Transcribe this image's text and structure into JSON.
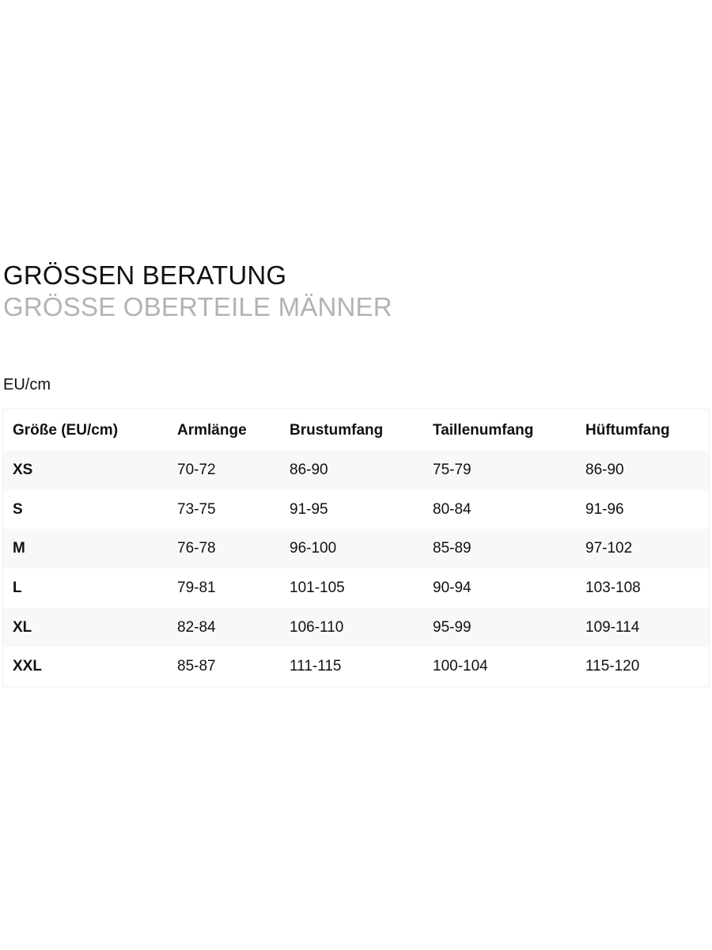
{
  "header": {
    "title": "GRÖSSEN BERATUNG",
    "subtitle": "GRÖSSE OBERTEILE MÄNNER",
    "unit": "EU/cm"
  },
  "table": {
    "columns": [
      "Größe (EU/cm)",
      "Armlänge",
      "Brustumfang",
      "Taillenumfang",
      "Hüftumfang"
    ],
    "rows": [
      [
        "XS",
        "70-72",
        "86-90",
        "75-79",
        "86-90"
      ],
      [
        "S",
        "73-75",
        "91-95",
        "80-84",
        "91-96"
      ],
      [
        "M",
        "76-78",
        "96-100",
        "85-89",
        "97-102"
      ],
      [
        "L",
        "79-81",
        "101-105",
        "90-94",
        "103-108"
      ],
      [
        "XL",
        "82-84",
        "106-110",
        "95-99",
        "109-114"
      ],
      [
        "XXL",
        "85-87",
        "111-115",
        "100-104",
        "115-120"
      ]
    ]
  },
  "colors": {
    "text": "#111111",
    "subtitle": "#b3b3b3",
    "row_shade": "#f8f8f8"
  }
}
